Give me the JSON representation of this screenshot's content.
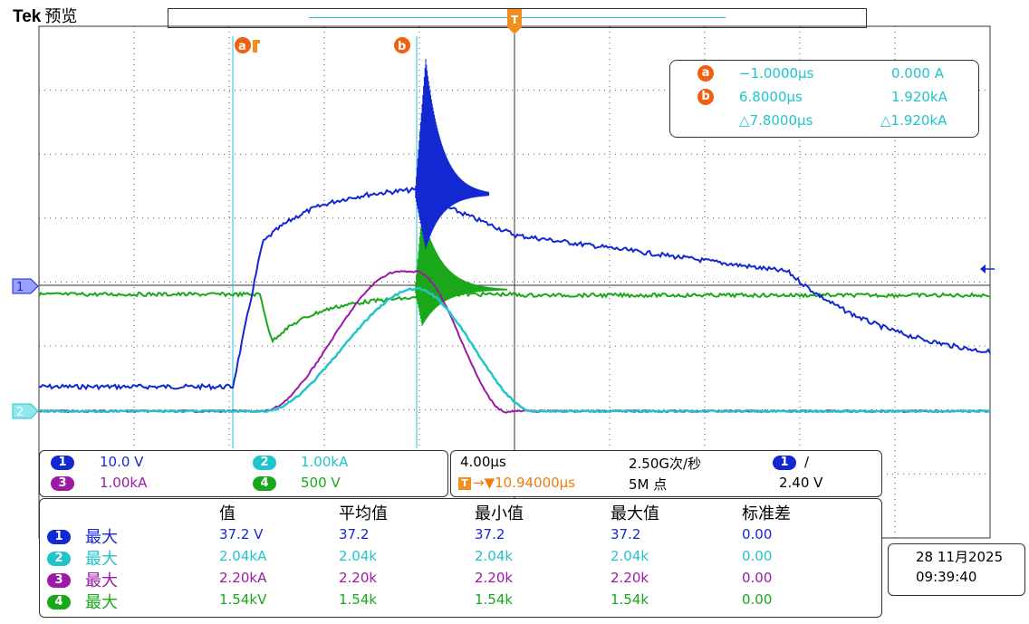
{
  "header": {
    "brand": "Tek",
    "mode": "预览"
  },
  "cursors": {
    "a_label": "a",
    "b_label": "b",
    "readout": {
      "a_time": "−1.0000µs",
      "a_value": "0.000 A",
      "b_time": "6.8000µs",
      "b_value": "1.920kA",
      "delta_time": "△7.8000µs",
      "delta_value": "△1.920kA"
    }
  },
  "channels": [
    {
      "num": "1",
      "scale": "10.0 V",
      "color": "#1428d2"
    },
    {
      "num": "2",
      "scale": "1.00kA",
      "color": "#22c4cc"
    },
    {
      "num": "3",
      "scale": "1.00kA",
      "color": "#9c1aa6"
    },
    {
      "num": "4",
      "scale": "500 V",
      "color": "#1aa81a"
    }
  ],
  "timebase": {
    "horizontal": "4.00µs",
    "sample_rate": "2.50G次/秒",
    "trigger_pos": "→▼10.94000µs",
    "record_length": "5M 点",
    "trigger_channel": "1",
    "trigger_slope": "∕",
    "trigger_level": "2.40 V"
  },
  "measurements": {
    "headers": [
      "值",
      "平均值",
      "最小值",
      "最大值",
      "标准差"
    ],
    "rows": [
      {
        "ch": "1",
        "name": "最大",
        "value": "37.2 V",
        "mean": "37.2",
        "min": "37.2",
        "max": "37.2",
        "std": "0.00"
      },
      {
        "ch": "2",
        "name": "最大",
        "value": "2.04kA",
        "mean": "2.04k",
        "min": "2.04k",
        "max": "2.04k",
        "std": "0.00"
      },
      {
        "ch": "3",
        "name": "最大",
        "value": "2.20kA",
        "mean": "2.20k",
        "min": "2.20k",
        "max": "2.20k",
        "std": "0.00"
      },
      {
        "ch": "4",
        "name": "最大",
        "value": "1.54kV",
        "mean": "1.54k",
        "min": "1.54k",
        "max": "1.54k",
        "std": "0.00"
      }
    ]
  },
  "datetime": {
    "date": "28 11月2025",
    "time": "09:39:40"
  },
  "ground_markers": {
    "ch1": "1",
    "ch2": "2"
  },
  "trigger_marker": "T"
}
